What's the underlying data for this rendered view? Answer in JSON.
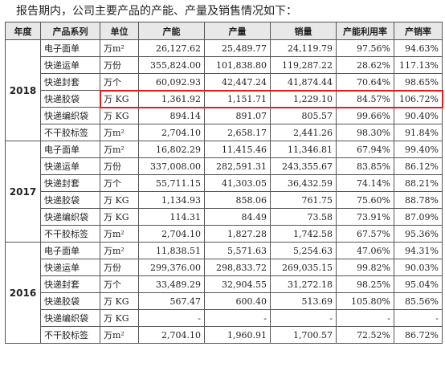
{
  "intro": "报告期内，公司主要产品的产能、产量及销售情况如下：",
  "headers": [
    "年度",
    "产品系列",
    "单位",
    "产能",
    "产量",
    "销量",
    "产能利用率",
    "产销率"
  ],
  "groups": [
    {
      "year": "2018",
      "rows": [
        [
          "电子面单",
          "万m²",
          "26,127.62",
          "25,489.77",
          "24,119.79",
          "97.56%",
          "94.63%"
        ],
        [
          "快递运单",
          "万份",
          "355,824.00",
          "101,838.80",
          "119,287.22",
          "28.62%",
          "117.13%"
        ],
        [
          "快递封套",
          "万个",
          "60,092.93",
          "42,447.24",
          "41,874.44",
          "70.64%",
          "98.65%"
        ],
        [
          "快递胶袋",
          "万 KG",
          "1,361.92",
          "1,151.71",
          "1,229.10",
          "84.57%",
          "106.72%"
        ],
        [
          "快递编织袋",
          "万 KG",
          "894.14",
          "891.07",
          "805.57",
          "99.66%",
          "90.40%"
        ],
        [
          "不干胶标签",
          "万m²",
          "2,704.10",
          "2,658.17",
          "2,441.26",
          "98.30%",
          "91.84%"
        ]
      ]
    },
    {
      "year": "2017",
      "rows": [
        [
          "电子面单",
          "万m²",
          "16,802.29",
          "11,415.46",
          "11,346.81",
          "67.94%",
          "99.40%"
        ],
        [
          "快递运单",
          "万份",
          "337,008.00",
          "282,591.31",
          "243,355.67",
          "83.85%",
          "86.12%"
        ],
        [
          "快递封套",
          "万个",
          "55,711.15",
          "41,303.05",
          "36,432.59",
          "74.14%",
          "88.21%"
        ],
        [
          "快递胶袋",
          "万 KG",
          "1,134.93",
          "858.06",
          "761.75",
          "75.60%",
          "88.78%"
        ],
        [
          "快递编织袋",
          "万 KG",
          "114.31",
          "84.49",
          "73.58",
          "73.91%",
          "87.09%"
        ],
        [
          "不干胶标签",
          "万m²",
          "2,704.10",
          "1,827.28",
          "1,742.58",
          "67.57%",
          "95.36%"
        ]
      ]
    },
    {
      "year": "2016",
      "rows": [
        [
          "电子面单",
          "万m²",
          "11,838.51",
          "5,571.63",
          "5,254.63",
          "47.06%",
          "94.31%"
        ],
        [
          "快递运单",
          "万份",
          "299,376.00",
          "298,833.72",
          "269,035.15",
          "99.82%",
          "90.03%"
        ],
        [
          "快递封套",
          "万个",
          "33,489.29",
          "32,904.55",
          "31,272.18",
          "98.25%",
          "95.04%"
        ],
        [
          "快递胶袋",
          "万 KG",
          "567.47",
          "600.40",
          "513.69",
          "105.80%",
          "85.56%"
        ],
        [
          "快递编织袋",
          "万 KG",
          "-",
          "-",
          "-",
          "-",
          "-"
        ],
        [
          "不干胶标签",
          "万m²",
          "2,704.10",
          "1,960.91",
          "1,700.57",
          "72.52%",
          "86.72%"
        ]
      ]
    }
  ],
  "highlight_color": "#e02020"
}
